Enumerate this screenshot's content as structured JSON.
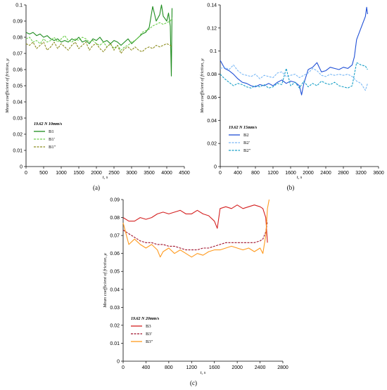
{
  "chart_data": [
    {
      "id": "a",
      "type": "line",
      "panel_label": "(a)",
      "title": "",
      "xlabel": "t, s",
      "ylabel": "Mean coefficient of friction, μ",
      "xlim": [
        0,
        4500
      ],
      "ylim": [
        0,
        0.1
      ],
      "xticks": [
        0,
        500,
        1000,
        1500,
        2000,
        2500,
        3000,
        3500,
        4000,
        4500
      ],
      "yticks": [
        0,
        0.01,
        0.02,
        0.03,
        0.04,
        0.05,
        0.06,
        0.07,
        0.08,
        0.09,
        0.1
      ],
      "yticklabels": [
        "0",
        "0.01",
        "0.02",
        "0.03",
        "0.04",
        "0.05",
        "0.06",
        "0.07",
        "0.08",
        "0.09",
        "0.1"
      ],
      "legend_title": "19.62 N 10mm/s",
      "legend_position": "left-bottom",
      "series": [
        {
          "name": "B1",
          "color": "#1e8c1e",
          "dash": "solid",
          "x": [
            0,
            100,
            200,
            300,
            400,
            500,
            600,
            700,
            800,
            900,
            1000,
            1100,
            1200,
            1300,
            1400,
            1500,
            1600,
            1700,
            1800,
            1900,
            2000,
            2100,
            2200,
            2300,
            2400,
            2500,
            2600,
            2700,
            2800,
            2900,
            3000,
            3100,
            3200,
            3300,
            3400,
            3500,
            3600,
            3700,
            3800,
            3850,
            3900,
            4000,
            4050,
            4100,
            4130,
            4150
          ],
          "y": [
            0.083,
            0.082,
            0.083,
            0.081,
            0.082,
            0.08,
            0.081,
            0.079,
            0.078,
            0.079,
            0.077,
            0.078,
            0.077,
            0.079,
            0.078,
            0.08,
            0.077,
            0.078,
            0.076,
            0.079,
            0.078,
            0.08,
            0.077,
            0.078,
            0.076,
            0.078,
            0.077,
            0.075,
            0.077,
            0.079,
            0.076,
            0.078,
            0.08,
            0.082,
            0.083,
            0.086,
            0.099,
            0.09,
            0.094,
            0.1,
            0.093,
            0.09,
            0.095,
            0.087,
            0.056,
            0.098
          ]
        },
        {
          "name": "B1'",
          "color": "#6fcf4f",
          "dash": "dash",
          "x": [
            0,
            100,
            200,
            300,
            400,
            500,
            600,
            700,
            800,
            900,
            1000,
            1100,
            1200,
            1300,
            1400,
            1500,
            1600,
            1700,
            1800,
            1900,
            2000,
            2100,
            2200,
            2300,
            2400,
            2500,
            2600,
            2700,
            2800,
            2900,
            3000,
            3100,
            3200,
            3300,
            3400,
            3500,
            3600,
            3700,
            3800,
            3900,
            4000,
            4100,
            4150
          ],
          "y": [
            0.079,
            0.08,
            0.077,
            0.078,
            0.076,
            0.079,
            0.077,
            0.078,
            0.08,
            0.077,
            0.079,
            0.081,
            0.078,
            0.077,
            0.079,
            0.078,
            0.08,
            0.079,
            0.077,
            0.078,
            0.076,
            0.075,
            0.077,
            0.074,
            0.076,
            0.073,
            0.075,
            0.072,
            0.074,
            0.075,
            0.077,
            0.078,
            0.08,
            0.083,
            0.084,
            0.085,
            0.087,
            0.088,
            0.089,
            0.088,
            0.089,
            0.09,
            0.092
          ]
        },
        {
          "name": "B1''",
          "color": "#8c8c1e",
          "dash": "dash",
          "x": [
            0,
            100,
            200,
            300,
            400,
            500,
            600,
            700,
            800,
            900,
            1000,
            1100,
            1200,
            1300,
            1400,
            1500,
            1600,
            1700,
            1800,
            1900,
            2000,
            2100,
            2200,
            2300,
            2400,
            2500,
            2600,
            2700,
            2800,
            2900,
            3000,
            3100,
            3200,
            3300,
            3400,
            3500,
            3600,
            3700,
            3800,
            3900,
            4000,
            4100,
            4150
          ],
          "y": [
            0.076,
            0.075,
            0.077,
            0.073,
            0.075,
            0.077,
            0.072,
            0.074,
            0.077,
            0.073,
            0.076,
            0.074,
            0.072,
            0.075,
            0.077,
            0.073,
            0.075,
            0.077,
            0.072,
            0.075,
            0.076,
            0.073,
            0.071,
            0.074,
            0.076,
            0.072,
            0.075,
            0.07,
            0.073,
            0.074,
            0.072,
            0.074,
            0.072,
            0.071,
            0.073,
            0.074,
            0.073,
            0.075,
            0.074,
            0.075,
            0.076,
            0.075,
            0.074
          ]
        }
      ]
    },
    {
      "id": "b",
      "type": "line",
      "panel_label": "(b)",
      "title": "",
      "xlabel": "t, s",
      "ylabel": "Mean coefficient of friction, μ",
      "xlim": [
        0,
        3600
      ],
      "ylim": [
        0,
        0.14
      ],
      "xticks": [
        0,
        400,
        800,
        1200,
        1600,
        2000,
        2400,
        2800,
        3200,
        3600
      ],
      "yticks": [
        0,
        0.02,
        0.04,
        0.06,
        0.08,
        0.1,
        0.12,
        0.14
      ],
      "yticklabels": [
        "0",
        "0.02",
        "0.04",
        "0.06",
        "0.08",
        "0.1",
        "0.12",
        "0.14"
      ],
      "legend_title": "19.62 N 15mm/s",
      "legend_position": "left-bottom",
      "series": [
        {
          "name": "B2",
          "color": "#1f4fd6",
          "dash": "solid",
          "x": [
            0,
            100,
            200,
            300,
            400,
            500,
            600,
            700,
            800,
            900,
            1000,
            1100,
            1200,
            1300,
            1400,
            1500,
            1600,
            1700,
            1800,
            1850,
            1900,
            2000,
            2100,
            2200,
            2300,
            2400,
            2500,
            2600,
            2700,
            2800,
            2900,
            3000,
            3050,
            3100,
            3200,
            3300,
            3330,
            3350
          ],
          "y": [
            0.092,
            0.085,
            0.083,
            0.08,
            0.076,
            0.073,
            0.072,
            0.07,
            0.069,
            0.071,
            0.07,
            0.072,
            0.07,
            0.073,
            0.075,
            0.072,
            0.074,
            0.073,
            0.07,
            0.062,
            0.072,
            0.084,
            0.086,
            0.09,
            0.082,
            0.083,
            0.086,
            0.085,
            0.084,
            0.086,
            0.085,
            0.088,
            0.095,
            0.11,
            0.12,
            0.13,
            0.138,
            0.132
          ]
        },
        {
          "name": "B2'",
          "color": "#7ab8f5",
          "dash": "dash",
          "x": [
            0,
            100,
            200,
            300,
            400,
            500,
            600,
            700,
            800,
            900,
            1000,
            1100,
            1200,
            1300,
            1400,
            1500,
            1600,
            1700,
            1800,
            1900,
            2000,
            2100,
            2200,
            2300,
            2400,
            2500,
            2600,
            2700,
            2800,
            2900,
            3000,
            3100,
            3200,
            3300,
            3350
          ],
          "y": [
            0.085,
            0.086,
            0.084,
            0.088,
            0.083,
            0.08,
            0.079,
            0.078,
            0.08,
            0.076,
            0.079,
            0.078,
            0.077,
            0.081,
            0.082,
            0.078,
            0.079,
            0.08,
            0.077,
            0.079,
            0.081,
            0.085,
            0.083,
            0.079,
            0.078,
            0.08,
            0.079,
            0.08,
            0.079,
            0.08,
            0.078,
            0.074,
            0.072,
            0.066,
            0.072
          ]
        },
        {
          "name": "B2''",
          "color": "#1aa0c8",
          "dash": "dash",
          "x": [
            0,
            100,
            200,
            300,
            400,
            500,
            600,
            700,
            800,
            900,
            1000,
            1100,
            1200,
            1300,
            1400,
            1500,
            1600,
            1700,
            1800,
            1900,
            2000,
            2100,
            2200,
            2300,
            2400,
            2500,
            2600,
            2700,
            2800,
            2900,
            3000,
            3100,
            3200,
            3300,
            3350
          ],
          "y": [
            0.08,
            0.076,
            0.073,
            0.07,
            0.072,
            0.071,
            0.069,
            0.068,
            0.07,
            0.069,
            0.071,
            0.068,
            0.069,
            0.072,
            0.071,
            0.085,
            0.07,
            0.073,
            0.068,
            0.074,
            0.069,
            0.072,
            0.07,
            0.074,
            0.072,
            0.071,
            0.073,
            0.07,
            0.069,
            0.068,
            0.07,
            0.09,
            0.088,
            0.087,
            0.084
          ]
        }
      ]
    },
    {
      "id": "c",
      "type": "line",
      "panel_label": "(c)",
      "title": "",
      "xlabel": "t, s",
      "ylabel": "Mean coefficient of friction, μ",
      "xlim": [
        0,
        2800
      ],
      "ylim": [
        0,
        0.09
      ],
      "xticks": [
        0,
        400,
        800,
        1200,
        1600,
        2000,
        2400,
        2800
      ],
      "yticks": [
        0,
        0.01,
        0.02,
        0.03,
        0.04,
        0.05,
        0.06,
        0.07,
        0.08,
        0.09
      ],
      "yticklabels": [
        "0",
        "0.01",
        "0.02",
        "0.03",
        "0.04",
        "0.05",
        "0.06",
        "0.07",
        "0.08",
        "0.09"
      ],
      "legend_title": "19.62 N 20mm/s",
      "legend_position": "left-bottom",
      "series": [
        {
          "name": "B3",
          "color": "#d42020",
          "dash": "solid",
          "x": [
            0,
            100,
            200,
            300,
            400,
            500,
            600,
            700,
            800,
            900,
            1000,
            1100,
            1200,
            1300,
            1400,
            1500,
            1600,
            1650,
            1700,
            1800,
            1900,
            2000,
            2100,
            2200,
            2300,
            2400,
            2450,
            2500,
            2530
          ],
          "y": [
            0.08,
            0.078,
            0.078,
            0.08,
            0.079,
            0.08,
            0.082,
            0.083,
            0.082,
            0.083,
            0.084,
            0.082,
            0.082,
            0.084,
            0.082,
            0.081,
            0.078,
            0.074,
            0.085,
            0.086,
            0.085,
            0.087,
            0.085,
            0.086,
            0.087,
            0.086,
            0.085,
            0.08,
            0.066
          ]
        },
        {
          "name": "B3'",
          "color": "#a0102a",
          "dash": "dash",
          "x": [
            0,
            100,
            200,
            300,
            400,
            500,
            600,
            700,
            800,
            900,
            1000,
            1100,
            1200,
            1300,
            1400,
            1500,
            1600,
            1700,
            1800,
            1900,
            2000,
            2100,
            2200,
            2300,
            2400,
            2450,
            2500,
            2530
          ],
          "y": [
            0.073,
            0.071,
            0.069,
            0.067,
            0.066,
            0.066,
            0.065,
            0.065,
            0.064,
            0.064,
            0.063,
            0.062,
            0.062,
            0.062,
            0.063,
            0.063,
            0.064,
            0.065,
            0.066,
            0.066,
            0.066,
            0.066,
            0.066,
            0.066,
            0.067,
            0.068,
            0.072,
            0.078
          ]
        },
        {
          "name": "B3''",
          "color": "#ff9a1e",
          "dash": "solid",
          "x": [
            0,
            100,
            200,
            300,
            400,
            500,
            600,
            650,
            700,
            800,
            900,
            1000,
            1100,
            1200,
            1300,
            1400,
            1500,
            1600,
            1700,
            1800,
            1900,
            2000,
            2100,
            2200,
            2300,
            2400,
            2450,
            2500,
            2530,
            2560
          ],
          "y": [
            0.077,
            0.065,
            0.068,
            0.065,
            0.063,
            0.065,
            0.062,
            0.058,
            0.061,
            0.063,
            0.06,
            0.062,
            0.06,
            0.058,
            0.06,
            0.059,
            0.061,
            0.062,
            0.062,
            0.063,
            0.064,
            0.063,
            0.062,
            0.063,
            0.061,
            0.063,
            0.06,
            0.07,
            0.085,
            0.09
          ]
        }
      ]
    }
  ]
}
